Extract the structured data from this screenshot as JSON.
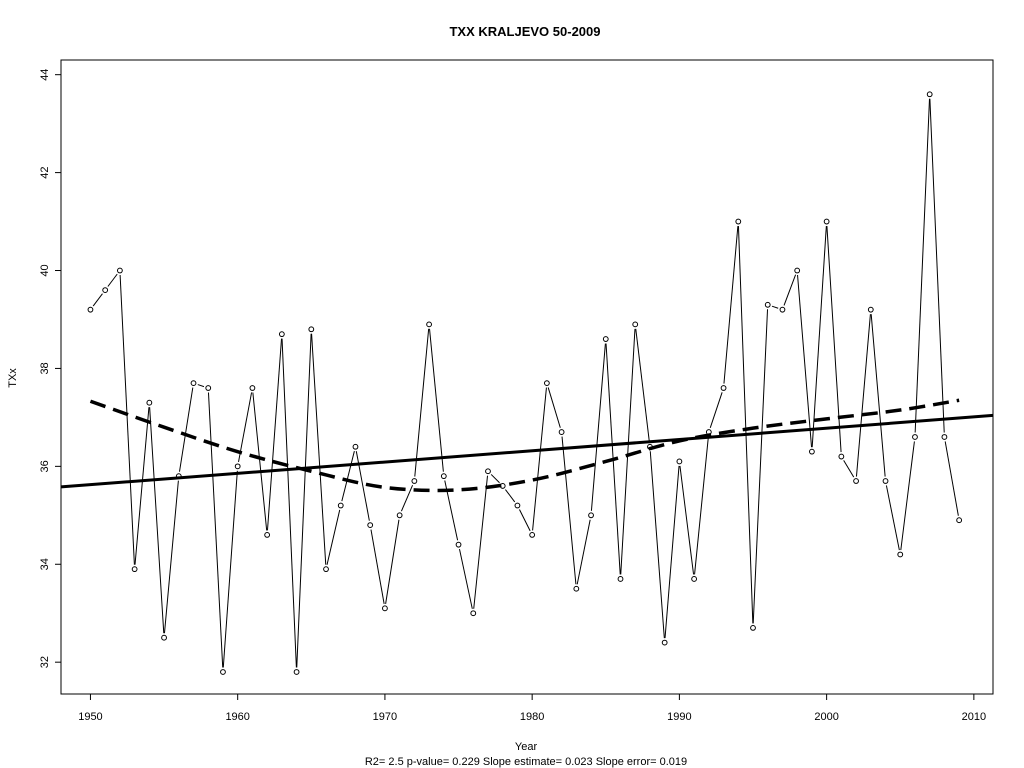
{
  "chart_data": {
    "type": "line",
    "title": "TXX   KRALJEVO 50-2009",
    "xlabel": "Year",
    "ylabel": "TXx",
    "footer": "R2= 2.5  p-value= 0.229  Slope estimate= 0.023  Slope error= 0.019",
    "xlim": [
      1948,
      2011.3
    ],
    "ylim": [
      31.35,
      44.3
    ],
    "xticks": [
      1950,
      1960,
      1970,
      1980,
      1990,
      2000,
      2010
    ],
    "yticks": [
      32,
      34,
      36,
      38,
      40,
      42,
      44
    ],
    "grid": false,
    "series": [
      {
        "kind": "observed",
        "x": [
          1950,
          1951,
          1952,
          1953,
          1954,
          1955,
          1956,
          1957,
          1958,
          1959,
          1960,
          1961,
          1962,
          1963,
          1964,
          1965,
          1966,
          1967,
          1968,
          1969,
          1970,
          1971,
          1972,
          1973,
          1974,
          1975,
          1976,
          1977,
          1978,
          1979,
          1980,
          1981,
          1982,
          1983,
          1984,
          1985,
          1986,
          1987,
          1988,
          1989,
          1990,
          1991,
          1992,
          1993,
          1994,
          1995,
          1996,
          1997,
          1998,
          1999,
          2000,
          2001,
          2002,
          2003,
          2004,
          2005,
          2006,
          2007,
          2008,
          2009
        ],
        "values": [
          39.2,
          39.6,
          40.0,
          33.9,
          37.3,
          32.5,
          35.8,
          37.7,
          37.6,
          31.8,
          36.0,
          37.6,
          34.6,
          38.7,
          31.8,
          38.8,
          33.9,
          35.2,
          36.4,
          34.8,
          33.1,
          35.0,
          35.7,
          38.9,
          35.8,
          34.4,
          33.0,
          35.9,
          35.6,
          35.2,
          34.6,
          37.7,
          36.7,
          33.5,
          35.0,
          38.6,
          33.7,
          38.9,
          36.4,
          32.4,
          36.1,
          33.7,
          36.7,
          37.6,
          41.0,
          32.7,
          39.3,
          39.2,
          40.0,
          36.3,
          41.0,
          36.2,
          35.7,
          39.2,
          35.7,
          34.2,
          36.6,
          43.6,
          36.6,
          34.9
        ]
      },
      {
        "kind": "linear-trend",
        "x": [
          1948,
          2011.3
        ],
        "values": [
          35.58,
          37.04
        ]
      },
      {
        "kind": "smoothed-trend",
        "x": [
          1950,
          1955,
          1960,
          1965,
          1970,
          1975,
          1980,
          1985,
          1990,
          1995,
          2000,
          2005,
          2009
        ],
        "values": [
          37.33,
          36.8,
          36.3,
          35.9,
          35.57,
          35.52,
          35.72,
          36.1,
          36.52,
          36.78,
          36.97,
          37.15,
          37.35
        ]
      }
    ]
  }
}
